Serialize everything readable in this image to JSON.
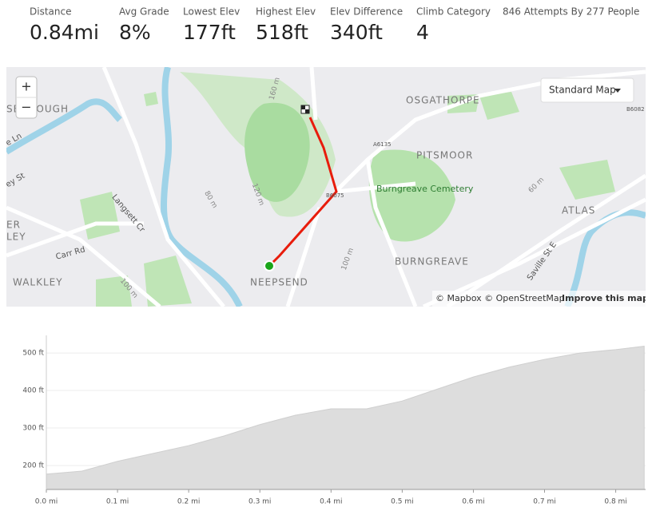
{
  "stats": [
    {
      "label": "Distance",
      "value": "0.84mi"
    },
    {
      "label": "Avg Grade",
      "value": "8%"
    },
    {
      "label": "Lowest Elev",
      "value": "177ft"
    },
    {
      "label": "Highest Elev",
      "value": "518ft"
    },
    {
      "label": "Elev Difference",
      "value": "340ft"
    },
    {
      "label": "Climb Category",
      "value": "4"
    }
  ],
  "attempts": "846 Attempts By 277 People",
  "map": {
    "zoom_in": "+",
    "zoom_out": "−",
    "style_button": "Standard Map",
    "attribution": "© Mapbox © OpenStreetMap",
    "attribution_link": "Improve this map",
    "labels": [
      "OSGATHORPE",
      "PITSMOOR",
      "Burngreave Cemetery",
      "ATLAS",
      "BURNGREAVE",
      "NEEPSEND",
      "WALKLEY",
      "Carr Rd",
      "Langsett Cr",
      "Saville St E",
      "160 m",
      "120 m",
      "80 m",
      "100 m",
      "100 m",
      "60 m",
      "A6135",
      "B6075",
      "B6082",
      "SBOROUGH",
      "ER",
      "LEY",
      "e Ln",
      "ey St"
    ]
  },
  "chart_data": {
    "type": "area",
    "color": "#dddddd",
    "x": [
      0,
      0.05,
      0.1,
      0.15,
      0.2,
      0.25,
      0.3,
      0.35,
      0.4,
      0.45,
      0.5,
      0.55,
      0.6,
      0.65,
      0.7,
      0.75,
      0.8,
      0.84
    ],
    "values": [
      177,
      185,
      211,
      232,
      253,
      279,
      309,
      334,
      351,
      351,
      372,
      404,
      436,
      462,
      483,
      500,
      509,
      518
    ],
    "xlim": [
      0,
      0.842
    ],
    "ylim": [
      136,
      547
    ],
    "xticks": [
      {
        "value": 0,
        "label": "0.0 mi"
      },
      {
        "value": 0.1,
        "label": "0.1 mi"
      },
      {
        "value": 0.2,
        "label": "0.2 mi"
      },
      {
        "value": 0.3,
        "label": "0.3 mi"
      },
      {
        "value": 0.4,
        "label": "0.4 mi"
      },
      {
        "value": 0.5,
        "label": "0.5 mi"
      },
      {
        "value": 0.6,
        "label": "0.6 mi"
      },
      {
        "value": 0.7,
        "label": "0.7 mi"
      },
      {
        "value": 0.8,
        "label": "0.8 mi"
      }
    ],
    "yticks": [
      {
        "value": 200,
        "label": "200 ft"
      },
      {
        "value": 300,
        "label": "300 ft"
      },
      {
        "value": 400,
        "label": "400 ft"
      },
      {
        "value": 500,
        "label": "500 ft"
      }
    ],
    "grid": true
  }
}
